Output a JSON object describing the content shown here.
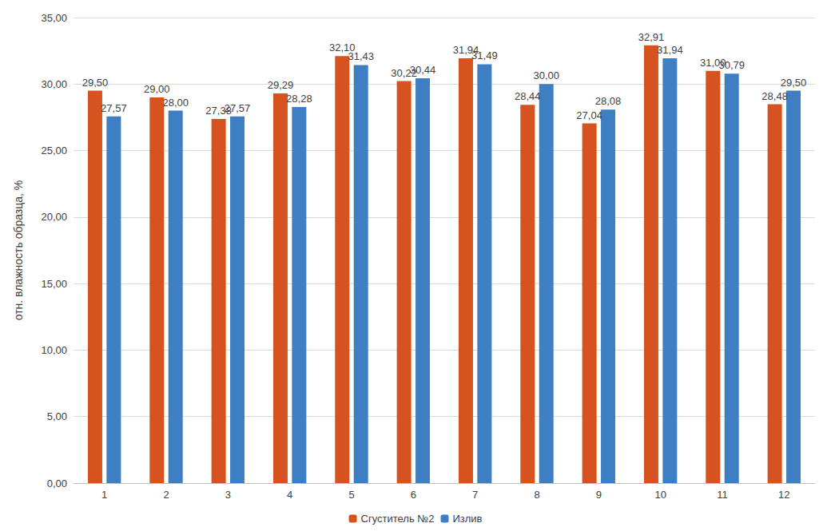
{
  "chart_data": {
    "type": "bar",
    "y_label": "отн. влажность образца, %",
    "categories": [
      "1",
      "2",
      "3",
      "4",
      "5",
      "6",
      "7",
      "8",
      "9",
      "10",
      "11",
      "12"
    ],
    "series": [
      {
        "name": "Сгуститель №2",
        "color": "#d6531f",
        "values": [
          29.5,
          29.0,
          27.38,
          29.29,
          32.1,
          30.22,
          31.94,
          28.44,
          27.04,
          32.91,
          31.0,
          28.48
        ],
        "value_labels": [
          "29,50",
          "29,00",
          "27,38",
          "29,29",
          "32,10",
          "30,22",
          "31,94",
          "28,44",
          "27,04",
          "32,91",
          "31,00",
          "28,48"
        ]
      },
      {
        "name": "Излив",
        "color": "#3d7fc2",
        "values": [
          27.57,
          28.0,
          27.57,
          28.28,
          31.43,
          30.44,
          31.49,
          30.0,
          28.08,
          31.94,
          30.79,
          29.5
        ],
        "value_labels": [
          "27,57",
          "28,00",
          "27,57",
          "28,28",
          "31,43",
          "30,44",
          "31,49",
          "30,00",
          "28,08",
          "31,94",
          "30,79",
          "29,50"
        ]
      }
    ],
    "ylim": [
      0,
      35
    ],
    "yticks": [
      {
        "value": 0,
        "label": "0,00"
      },
      {
        "value": 5,
        "label": "5,00"
      },
      {
        "value": 10,
        "label": "10,00"
      },
      {
        "value": 15,
        "label": "15,00"
      },
      {
        "value": 20,
        "label": "20,00"
      },
      {
        "value": 25,
        "label": "25,00"
      },
      {
        "value": 30,
        "label": "30,00"
      },
      {
        "value": 35,
        "label": "35,00"
      }
    ],
    "grid": true,
    "legend": "bottom",
    "data_labels": true
  }
}
